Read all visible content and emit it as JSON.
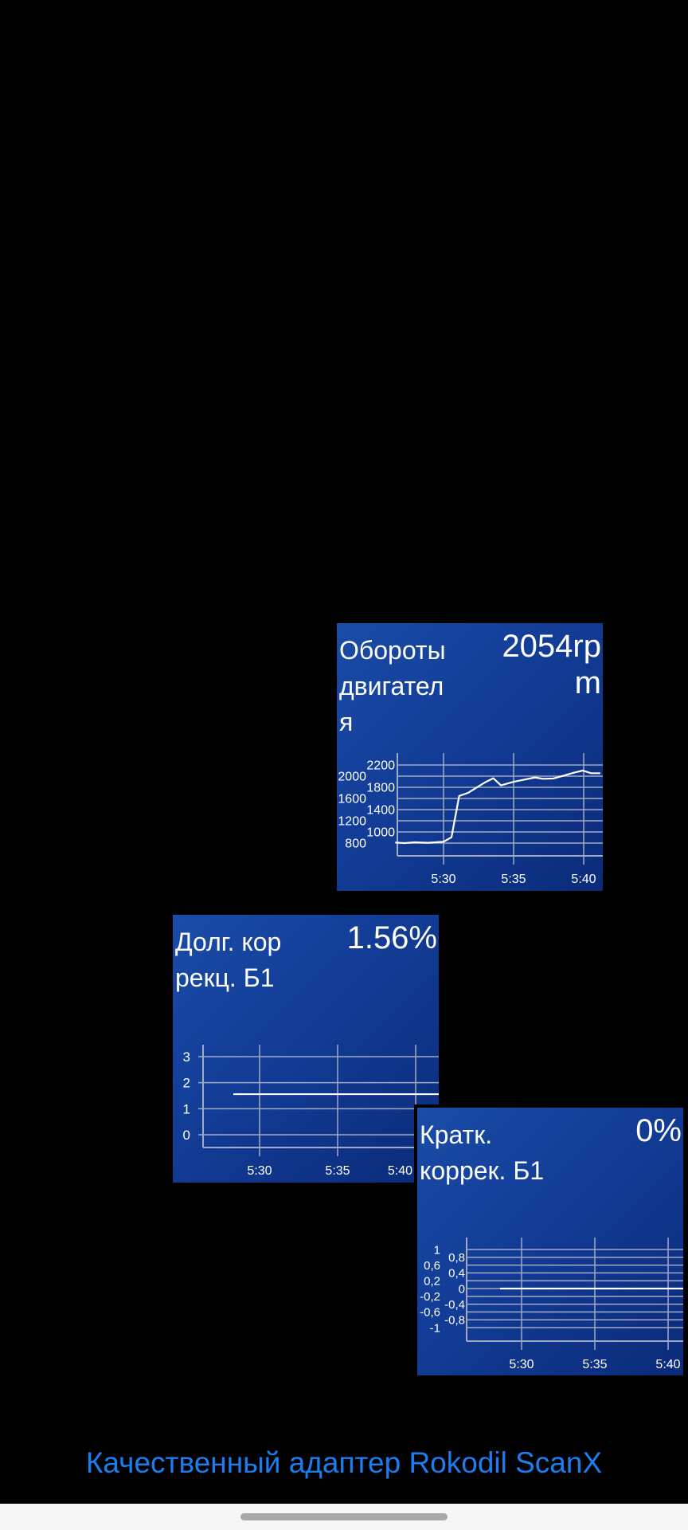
{
  "widgets": [
    {
      "title": "Обороты двигателя",
      "value": "2054rpm"
    },
    {
      "title": "Долг. коррекц. Б1",
      "value": "1.56%"
    },
    {
      "title": "Кратк. коррек. Б1",
      "value": "0%"
    }
  ],
  "footer": {
    "text": "Качественный адаптер Rokodil ScanX",
    "color": "#1a7ef0"
  },
  "colors": {
    "widget_bg": "#1747a0",
    "line": "#ffffff",
    "grid": "#a3aac4"
  },
  "chart_data": [
    {
      "type": "line",
      "yticks": [
        800,
        1000,
        1200,
        1400,
        1600,
        1800,
        2000,
        2200
      ],
      "xticks": [
        "5:30",
        "5:35",
        "5:40"
      ],
      "grid": true,
      "x": [
        "5:26:33",
        "5:27:12",
        "5:27:57",
        "5:28:53",
        "5:30:00",
        "5:30:34",
        "5:31:07",
        "5:31:46",
        "5:32:31",
        "5:32:59",
        "5:33:33",
        "5:34:06",
        "5:35:02",
        "5:36:32",
        "5:37:05",
        "5:37:50",
        "5:38:35",
        "5:39:14",
        "5:39:56",
        "5:40:32",
        "5:41:11"
      ],
      "values": [
        810,
        800,
        814,
        805,
        824,
        904,
        1645,
        1702,
        1820,
        1892,
        1963,
        1835,
        1901,
        1977,
        1953,
        1958,
        2010,
        2058,
        2100,
        2053,
        2053
      ]
    },
    {
      "type": "line",
      "yticks": [
        0,
        1,
        2,
        3
      ],
      "xticks": [
        "5:30",
        "5:35",
        "5:40"
      ],
      "grid": true,
      "x": [
        "5:28:19",
        "5:41:30"
      ],
      "values": [
        1.56,
        1.56
      ]
    },
    {
      "type": "line",
      "yticks": [
        -1,
        -0.8,
        -0.6,
        -0.4,
        -0.2,
        0,
        0.2,
        0.4,
        0.6,
        0.8,
        1
      ],
      "ytick_labels": [
        "-1",
        "-0,8",
        "-0,6",
        "-0,4",
        "-0,2",
        "0",
        "0,2",
        "0,4",
        "0,6",
        "0,8",
        "1"
      ],
      "xticks": [
        "5:30",
        "5:35",
        "5:40"
      ],
      "grid": true,
      "x": [
        "5:28:32",
        "5:41:30"
      ],
      "values": [
        0,
        0
      ]
    }
  ]
}
